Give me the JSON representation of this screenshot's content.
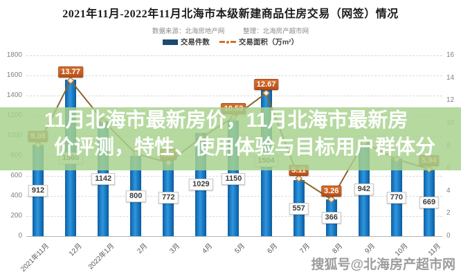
{
  "header": {
    "title": "2021年11月-2022年11月北海市本级新建商品住房交易（网签）情况",
    "source": "数据来源：北海房地产网",
    "organizer": "整理：北海房产超市网",
    "legend": [
      {
        "label": "交易件数",
        "type": "bar",
        "color": "#1b4a72"
      },
      {
        "label": "交易面积（万m²）",
        "type": "line",
        "color": "#d2702a"
      }
    ]
  },
  "overlay": {
    "line1": "11月北海市最新房价，11月北海市最新房",
    "line2": "价评测，特性、使用体验与目标用户群体分",
    "band_color": "rgba(168,210,142,0.84)",
    "text_color": "#ffffff"
  },
  "watermark": "搜狐号@北海房产超市网",
  "chart_data": {
    "type": "bar",
    "subtype": "bar+line combo, dual axis",
    "title": "2021年11月-2022年11月北海市本级新建商品住房交易（网签）情况",
    "categories": [
      "2021年11月",
      "12月",
      "2022年1月",
      "2月",
      "3月",
      "4月",
      "5月",
      "6月",
      "7月",
      "8月",
      "9月",
      "10月",
      "11月"
    ],
    "series": [
      {
        "name": "交易件数",
        "type": "bar",
        "axis": "left",
        "color": "#1474be",
        "values": [
          912,
          1560,
          1142,
          800,
          772,
          1029,
          1150,
          1504,
          557,
          366,
          942,
          770,
          669
        ],
        "labels": [
          "912",
          "1560",
          "1142",
          "800",
          "772",
          "1029",
          "1150",
          "1504",
          "557",
          "366",
          "942",
          "770",
          "669"
        ]
      },
      {
        "name": "交易面积（万m²）",
        "type": "line",
        "axis": "right",
        "color": "#8a6429",
        "values": [
          8.08,
          13.77,
          10.2,
          7.3,
          6.5,
          8.7,
          10.53,
          12.67,
          5.11,
          3.26,
          8.3,
          6.8,
          5.94
        ],
        "labels": [
          "8.08",
          "13.77",
          null,
          null,
          "6.5",
          null,
          "10.53",
          "12.67",
          "5.11",
          "3.26",
          null,
          null,
          "5.94"
        ]
      }
    ],
    "left_axis": {
      "min": 0,
      "max": 1800,
      "step": 200,
      "ticks": [
        "0",
        "200",
        "400",
        "600",
        "800",
        "1000",
        "1200",
        "1400",
        "1600",
        "1800"
      ]
    },
    "right_axis": {
      "min": 0,
      "max": 16,
      "step": 2,
      "ticks": [
        "0",
        "2",
        "4",
        "6",
        "8",
        "10",
        "12",
        "14",
        "16"
      ]
    },
    "grid": "horizontal dashed",
    "legend_position": "top center"
  }
}
